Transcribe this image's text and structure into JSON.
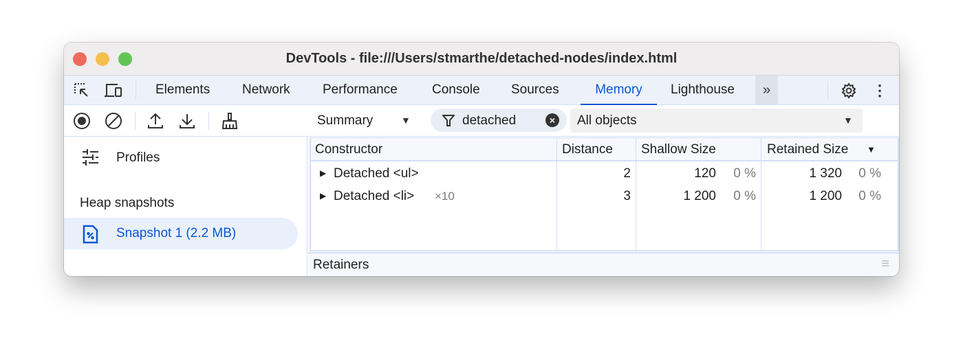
{
  "window": {
    "title": "DevTools - file:///Users/stmarthe/detached-nodes/index.html"
  },
  "tabs": [
    {
      "label": "Elements"
    },
    {
      "label": "Network"
    },
    {
      "label": "Performance"
    },
    {
      "label": "Console"
    },
    {
      "label": "Sources"
    },
    {
      "label": "Memory",
      "active": true
    },
    {
      "label": "Lighthouse"
    }
  ],
  "accent": "#0b57d0",
  "sidebar": {
    "profiles_label": "Profiles",
    "section": "Heap snapshots",
    "snapshot": "Snapshot 1 (2.2 MB)"
  },
  "filters": {
    "view": "Summary",
    "filter_value": "detached",
    "objects": "All objects"
  },
  "table": {
    "headers": [
      "Constructor",
      "Distance",
      "Shallow Size",
      "Retained Size"
    ],
    "rows": [
      {
        "name": "Detached <ul>",
        "count": "",
        "distance": "2",
        "shallow": "120",
        "shallow_pct": "0 %",
        "retained": "1 320",
        "retained_pct": "0 %"
      },
      {
        "name": "Detached <li>",
        "count": "×10",
        "distance": "3",
        "shallow": "1 200",
        "shallow_pct": "0 %",
        "retained": "1 200",
        "retained_pct": "0 %"
      }
    ]
  },
  "retainers_label": "Retainers"
}
